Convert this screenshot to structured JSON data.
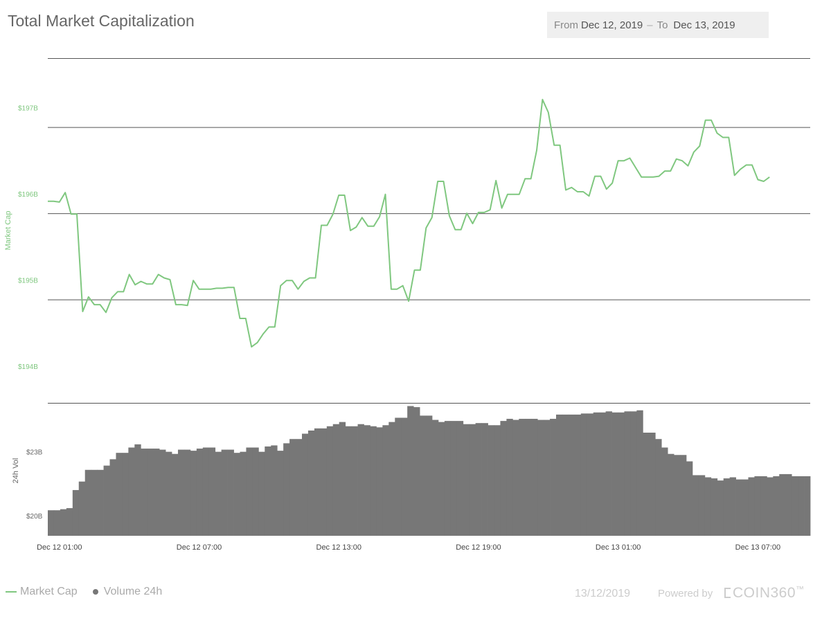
{
  "title": "Total Market Capitalization",
  "date_range": {
    "from_label": "From",
    "from": "Dec 12, 2019",
    "separator": "–",
    "to_label": "To",
    "to": "Dec 13, 2019"
  },
  "legend": {
    "market_cap": "Market Cap",
    "volume": "Volume 24h"
  },
  "footer": {
    "date": "13/12/2019",
    "powered_by": "Powered by",
    "brand": "COIN360",
    "tm": "™"
  },
  "colors": {
    "market_cap": "#7fc77f",
    "volume": "#777777",
    "grid": "#555555"
  },
  "chart_data": [
    {
      "type": "line",
      "ylabel": "Market Cap",
      "ylim": [
        193.8,
        197.8
      ],
      "y_ticks": [
        194,
        195,
        196,
        197
      ],
      "y_tick_labels": [
        "$194B",
        "$195B",
        "$196B",
        "$197B"
      ],
      "x_range": [
        0,
        131
      ],
      "x_ticks": [
        2,
        26,
        50,
        74,
        98,
        122
      ],
      "x_tick_labels": [
        "Dec 12 01:00",
        "Dec 12 07:00",
        "Dec 12 13:00",
        "Dec 12 19:00",
        "Dec 13 01:00",
        "Dec 13 07:00"
      ],
      "series": [
        {
          "name": "Market Cap",
          "values": [
            196.14,
            196.14,
            196.13,
            196.24,
            195.99,
            195.99,
            194.86,
            195.03,
            194.94,
            194.94,
            194.85,
            195.02,
            195.09,
            195.09,
            195.29,
            195.17,
            195.21,
            195.18,
            195.18,
            195.29,
            195.25,
            195.23,
            194.94,
            194.94,
            194.93,
            195.22,
            195.12,
            195.12,
            195.12,
            195.13,
            195.13,
            195.14,
            195.14,
            194.78,
            194.78,
            194.45,
            194.5,
            194.6,
            194.68,
            194.68,
            195.16,
            195.22,
            195.22,
            195.12,
            195.21,
            195.25,
            195.25,
            195.86,
            195.86,
            195.99,
            196.21,
            196.21,
            195.8,
            195.84,
            195.95,
            195.85,
            195.85,
            195.96,
            196.22,
            195.12,
            195.12,
            195.16,
            194.98,
            195.34,
            195.34,
            195.83,
            195.95,
            196.37,
            196.37,
            195.97,
            195.81,
            195.81,
            196.0,
            195.88,
            196.01,
            196.01,
            196.04,
            196.38,
            196.06,
            196.22,
            196.22,
            196.22,
            196.4,
            196.4,
            196.73,
            197.32,
            197.17,
            196.79,
            196.79,
            196.27,
            196.3,
            196.25,
            196.25,
            196.2,
            196.43,
            196.43,
            196.28,
            196.35,
            196.61,
            196.61,
            196.64,
            196.53,
            196.42,
            196.42,
            196.42,
            196.43,
            196.49,
            196.49,
            196.63,
            196.61,
            196.55,
            196.71,
            196.78,
            197.08,
            197.08,
            196.93,
            196.88,
            196.88,
            196.44,
            196.51,
            196.56,
            196.56,
            196.39,
            196.37,
            196.42
          ]
        }
      ]
    },
    {
      "type": "bar",
      "ylabel": "24h Vol",
      "ylim": [
        19.05,
        25.3
      ],
      "y_ticks": [
        20,
        23
      ],
      "y_tick_labels": [
        "$20B",
        "$23B"
      ],
      "x_range": [
        0,
        131
      ],
      "series": [
        {
          "name": "Volume 24h",
          "values": [
            20.25,
            20.25,
            20.3,
            20.35,
            21.2,
            21.6,
            22.15,
            22.15,
            22.15,
            22.35,
            22.65,
            22.95,
            22.95,
            23.2,
            23.35,
            23.15,
            23.15,
            23.15,
            23.1,
            23.0,
            22.9,
            23.1,
            23.1,
            23.05,
            23.15,
            23.2,
            23.2,
            23.0,
            23.1,
            23.1,
            22.95,
            23.0,
            23.2,
            23.2,
            23.0,
            23.25,
            23.3,
            23.05,
            23.4,
            23.6,
            23.6,
            23.85,
            24.0,
            24.1,
            24.1,
            24.2,
            24.3,
            24.4,
            24.2,
            24.2,
            24.3,
            24.25,
            24.2,
            24.15,
            24.25,
            24.4,
            24.6,
            24.6,
            25.15,
            25.1,
            24.7,
            24.7,
            24.5,
            24.4,
            24.45,
            24.45,
            24.45,
            24.3,
            24.3,
            24.35,
            24.35,
            24.25,
            24.25,
            24.45,
            24.55,
            24.5,
            24.55,
            24.55,
            24.55,
            24.5,
            24.5,
            24.55,
            24.75,
            24.75,
            24.75,
            24.75,
            24.8,
            24.8,
            24.85,
            24.85,
            24.9,
            24.85,
            24.85,
            24.9,
            24.9,
            24.95,
            23.9,
            23.9,
            23.6,
            23.2,
            22.9,
            22.85,
            22.85,
            22.55,
            21.9,
            21.9,
            21.8,
            21.75,
            21.65,
            21.75,
            21.8,
            21.7,
            21.7,
            21.8,
            21.85,
            21.85,
            21.8,
            21.85,
            21.95,
            21.95,
            21.85,
            21.85,
            21.85
          ]
        }
      ]
    }
  ]
}
